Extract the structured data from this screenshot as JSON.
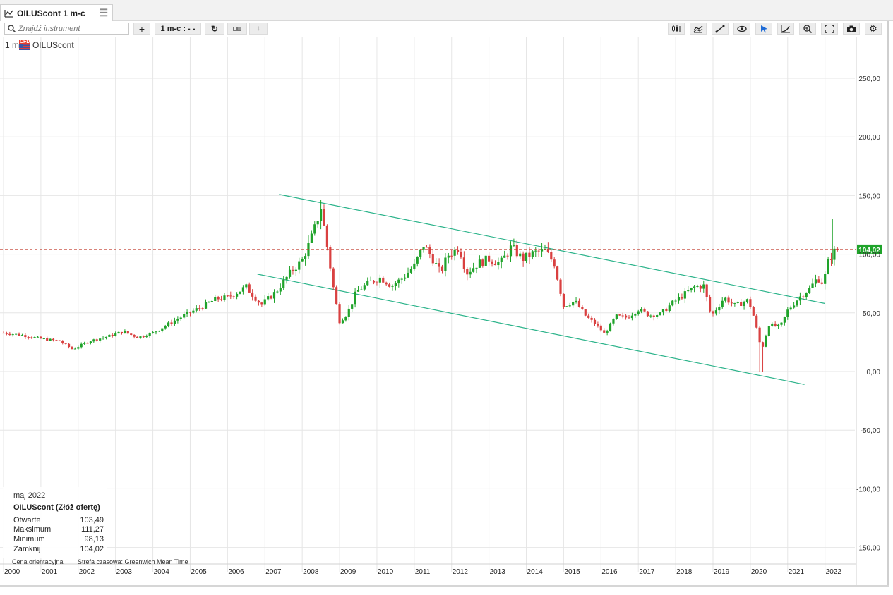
{
  "tab": {
    "title": "OILUScont 1 m-c"
  },
  "search": {
    "placeholder": "Znajdź instrument"
  },
  "toolbar": {
    "interval_label": "1 m-c : - -"
  },
  "instrument": {
    "interval": "1 m-c",
    "badge": "CFD",
    "name": "OILUScont"
  },
  "colors": {
    "up": "#1fa32a",
    "down": "#d94040",
    "trendline": "#2bb38a",
    "price_line": "#c0392b",
    "grid": "#e6e6e6"
  },
  "ohlc": {
    "month": "maj 2022",
    "name": "OILUScont (Złóż ofertę)",
    "rows": [
      {
        "label": "Otwarte",
        "value": "103,49"
      },
      {
        "label": "Maksimum",
        "value": "111,27"
      },
      {
        "label": "Minimum",
        "value": "98,13"
      },
      {
        "label": "Zamknij",
        "value": "104,02"
      }
    ]
  },
  "footer": {
    "note1": "Cena orientacyjna",
    "note2": "Strefa czasowa: Greenwich Mean Time"
  },
  "chart_data": {
    "type": "candlestick",
    "yticks": [
      250,
      200,
      150,
      100,
      50,
      0,
      -50,
      -100,
      -150
    ],
    "ytick_labels": [
      "250,00",
      "200,00",
      "150,00",
      "100,00",
      "50,00",
      "0,00",
      "-50,00",
      "-100,00",
      "-150,00"
    ],
    "ylim": [
      -175,
      290
    ],
    "xlim": [
      2000.0,
      2022.8
    ],
    "xticks": [
      2000,
      2001,
      2002,
      2003,
      2004,
      2005,
      2006,
      2007,
      2008,
      2009,
      2010,
      2011,
      2012,
      2013,
      2014,
      2015,
      2016,
      2017,
      2018,
      2019,
      2020,
      2021,
      2022
    ],
    "current_price": 104.02,
    "current_price_label": "104,02",
    "trendlines": [
      {
        "x1": 2007.38,
        "y1": 151,
        "x2": 2022.0,
        "y2": 58
      },
      {
        "x1": 2006.8,
        "y1": 83,
        "x2": 2021.45,
        "y2": -11
      }
    ],
    "series": [
      {
        "t": 2000.0,
        "v": 33
      },
      {
        "t": 2000.5,
        "v": 31
      },
      {
        "t": 2001.0,
        "v": 28
      },
      {
        "t": 2001.5,
        "v": 26
      },
      {
        "t": 2001.85,
        "v": 19
      },
      {
        "t": 2002.3,
        "v": 26
      },
      {
        "t": 2002.8,
        "v": 30
      },
      {
        "t": 2003.2,
        "v": 34
      },
      {
        "t": 2003.6,
        "v": 29
      },
      {
        "t": 2004.0,
        "v": 33
      },
      {
        "t": 2004.5,
        "v": 42
      },
      {
        "t": 2004.85,
        "v": 48
      },
      {
        "t": 2005.3,
        "v": 55
      },
      {
        "t": 2005.7,
        "v": 62
      },
      {
        "t": 2006.0,
        "v": 63
      },
      {
        "t": 2006.5,
        "v": 72
      },
      {
        "t": 2006.9,
        "v": 57
      },
      {
        "t": 2007.3,
        "v": 68
      },
      {
        "t": 2007.7,
        "v": 85
      },
      {
        "t": 2008.0,
        "v": 95
      },
      {
        "t": 2008.3,
        "v": 118
      },
      {
        "t": 2008.5,
        "v": 140
      },
      {
        "t": 2008.7,
        "v": 100
      },
      {
        "t": 2008.85,
        "v": 68
      },
      {
        "t": 2009.0,
        "v": 43
      },
      {
        "t": 2009.2,
        "v": 49
      },
      {
        "t": 2009.45,
        "v": 68
      },
      {
        "t": 2009.8,
        "v": 76
      },
      {
        "t": 2010.1,
        "v": 80
      },
      {
        "t": 2010.4,
        "v": 73
      },
      {
        "t": 2010.7,
        "v": 80
      },
      {
        "t": 2011.0,
        "v": 90
      },
      {
        "t": 2011.25,
        "v": 108
      },
      {
        "t": 2011.5,
        "v": 96
      },
      {
        "t": 2011.7,
        "v": 84
      },
      {
        "t": 2011.9,
        "v": 99
      },
      {
        "t": 2012.2,
        "v": 106
      },
      {
        "t": 2012.4,
        "v": 84
      },
      {
        "t": 2012.7,
        "v": 92
      },
      {
        "t": 2013.0,
        "v": 96
      },
      {
        "t": 2013.3,
        "v": 92
      },
      {
        "t": 2013.6,
        "v": 106
      },
      {
        "t": 2013.9,
        "v": 96
      },
      {
        "t": 2014.2,
        "v": 101
      },
      {
        "t": 2014.5,
        "v": 103
      },
      {
        "t": 2014.75,
        "v": 92
      },
      {
        "t": 2015.0,
        "v": 56
      },
      {
        "t": 2015.3,
        "v": 60
      },
      {
        "t": 2015.6,
        "v": 47
      },
      {
        "t": 2015.9,
        "v": 39
      },
      {
        "t": 2016.1,
        "v": 32
      },
      {
        "t": 2016.4,
        "v": 47
      },
      {
        "t": 2016.7,
        "v": 46
      },
      {
        "t": 2017.0,
        "v": 53
      },
      {
        "t": 2017.3,
        "v": 48
      },
      {
        "t": 2017.6,
        "v": 49
      },
      {
        "t": 2017.9,
        "v": 58
      },
      {
        "t": 2018.2,
        "v": 65
      },
      {
        "t": 2018.5,
        "v": 72
      },
      {
        "t": 2018.75,
        "v": 73
      },
      {
        "t": 2018.95,
        "v": 47
      },
      {
        "t": 2019.3,
        "v": 63
      },
      {
        "t": 2019.6,
        "v": 56
      },
      {
        "t": 2019.95,
        "v": 61
      },
      {
        "t": 2020.1,
        "v": 46
      },
      {
        "t": 2020.3,
        "v": 18
      },
      {
        "t": 2020.5,
        "v": 40
      },
      {
        "t": 2020.8,
        "v": 38
      },
      {
        "t": 2021.0,
        "v": 52
      },
      {
        "t": 2021.3,
        "v": 63
      },
      {
        "t": 2021.6,
        "v": 71
      },
      {
        "t": 2021.8,
        "v": 80
      },
      {
        "t": 2021.95,
        "v": 75
      },
      {
        "t": 2022.1,
        "v": 95
      },
      {
        "t": 2022.2,
        "v": 100
      },
      {
        "t": 2022.3,
        "v": 104
      }
    ]
  }
}
